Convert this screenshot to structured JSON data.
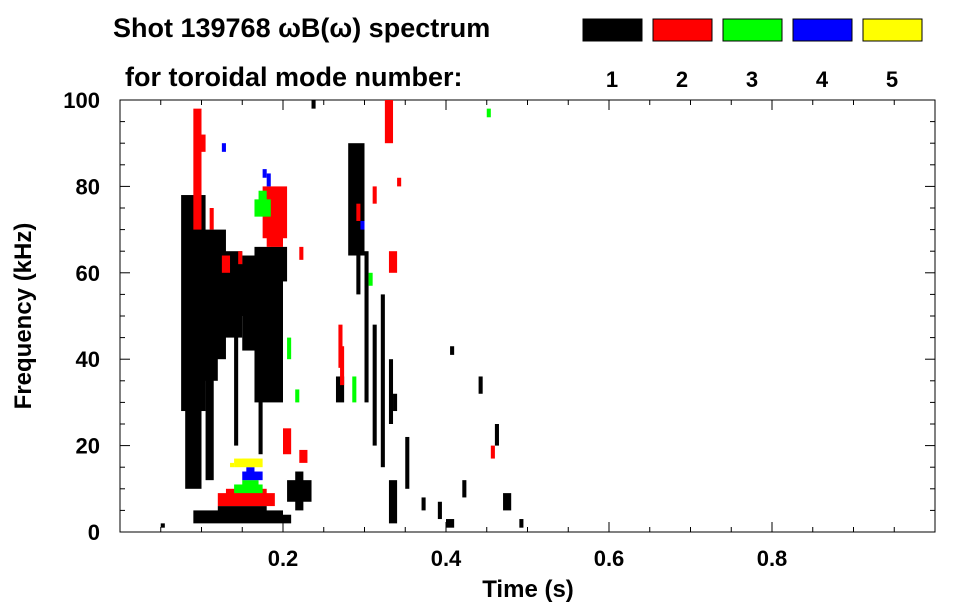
{
  "chart_data": {
    "type": "scatter",
    "title_line1": "Shot 139768 ωB(ω) spectrum",
    "title_line2": "for toroidal mode number:",
    "xlabel": "Time (s)",
    "ylabel": "Frequency (kHz)",
    "xlim": [
      0.0,
      1.0
    ],
    "ylim": [
      0,
      100
    ],
    "xticks": [
      0.2,
      0.4,
      0.6,
      0.8
    ],
    "xtick_labels": [
      "0.2",
      "0.4",
      "0.6",
      "0.8"
    ],
    "yticks": [
      0,
      20,
      40,
      60,
      80,
      100
    ],
    "ytick_labels": [
      "0",
      "20",
      "40",
      "60",
      "80",
      "100"
    ],
    "grid": false,
    "legend_placement": "top-right",
    "legend": [
      {
        "label": "1",
        "color": "#000000"
      },
      {
        "label": "2",
        "color": "#ff0000"
      },
      {
        "label": "3",
        "color": "#00ff00"
      },
      {
        "label": "4",
        "color": "#0000ff"
      },
      {
        "label": "5",
        "color": "#ffff00"
      }
    ],
    "series": [
      {
        "name": "1",
        "color": "#000000",
        "segments": [
          [
            0.075,
            0.105,
            28,
            78
          ],
          [
            0.08,
            0.1,
            10,
            50
          ],
          [
            0.09,
            0.12,
            35,
            62
          ],
          [
            0.1,
            0.13,
            40,
            70
          ],
          [
            0.12,
            0.15,
            45,
            65
          ],
          [
            0.13,
            0.17,
            50,
            62
          ],
          [
            0.15,
            0.18,
            42,
            64
          ],
          [
            0.165,
            0.2,
            30,
            66
          ],
          [
            0.185,
            0.205,
            58,
            66
          ],
          [
            0.105,
            0.115,
            12,
            55
          ],
          [
            0.14,
            0.145,
            20,
            48
          ],
          [
            0.17,
            0.175,
            18,
            50
          ],
          [
            0.09,
            0.2,
            2,
            5
          ],
          [
            0.12,
            0.18,
            3,
            6
          ],
          [
            0.205,
            0.235,
            7,
            12
          ],
          [
            0.215,
            0.225,
            5,
            14
          ],
          [
            0.28,
            0.3,
            64,
            90
          ],
          [
            0.3,
            0.305,
            30,
            65
          ],
          [
            0.29,
            0.295,
            55,
            86
          ],
          [
            0.265,
            0.275,
            30,
            36
          ],
          [
            0.31,
            0.315,
            20,
            48
          ],
          [
            0.32,
            0.325,
            15,
            55
          ],
          [
            0.33,
            0.335,
            25,
            40
          ],
          [
            0.335,
            0.34,
            28,
            32
          ],
          [
            0.33,
            0.34,
            2,
            12
          ],
          [
            0.35,
            0.355,
            10,
            22
          ],
          [
            0.37,
            0.375,
            5,
            8
          ],
          [
            0.39,
            0.395,
            3,
            7
          ],
          [
            0.4,
            0.41,
            1,
            3
          ],
          [
            0.42,
            0.425,
            8,
            12
          ],
          [
            0.44,
            0.445,
            32,
            36
          ],
          [
            0.46,
            0.465,
            20,
            25
          ],
          [
            0.47,
            0.48,
            5,
            9
          ],
          [
            0.49,
            0.495,
            1,
            3
          ],
          [
            0.05,
            0.055,
            1,
            2
          ],
          [
            0.235,
            0.24,
            98,
            100
          ],
          [
            0.405,
            0.41,
            41,
            43
          ],
          [
            0.2,
            0.21,
            2,
            4
          ]
        ]
      },
      {
        "name": "2",
        "color": "#ff0000",
        "segments": [
          [
            0.09,
            0.1,
            70,
            98
          ],
          [
            0.095,
            0.1,
            80,
            85
          ],
          [
            0.175,
            0.205,
            68,
            80
          ],
          [
            0.18,
            0.2,
            66,
            74
          ],
          [
            0.125,
            0.135,
            60,
            64
          ],
          [
            0.145,
            0.15,
            62,
            65
          ],
          [
            0.11,
            0.115,
            70,
            75
          ],
          [
            0.1,
            0.105,
            88,
            92
          ],
          [
            0.2,
            0.21,
            18,
            24
          ],
          [
            0.22,
            0.23,
            16,
            19
          ],
          [
            0.27,
            0.275,
            34,
            43
          ],
          [
            0.268,
            0.273,
            38,
            48
          ],
          [
            0.12,
            0.19,
            6,
            9
          ],
          [
            0.13,
            0.18,
            8,
            10
          ],
          [
            0.325,
            0.335,
            90,
            100
          ],
          [
            0.33,
            0.34,
            60,
            65
          ],
          [
            0.31,
            0.315,
            76,
            80
          ],
          [
            0.34,
            0.345,
            80,
            82
          ],
          [
            0.455,
            0.46,
            17,
            20
          ],
          [
            0.29,
            0.295,
            72,
            76
          ],
          [
            0.22,
            0.225,
            63,
            66
          ]
        ]
      },
      {
        "name": "3",
        "color": "#00ff00",
        "segments": [
          [
            0.165,
            0.185,
            73,
            77
          ],
          [
            0.17,
            0.18,
            75,
            79
          ],
          [
            0.14,
            0.175,
            9,
            11
          ],
          [
            0.15,
            0.17,
            10,
            12
          ],
          [
            0.205,
            0.21,
            40,
            45
          ],
          [
            0.285,
            0.29,
            30,
            36
          ],
          [
            0.305,
            0.31,
            57,
            60
          ],
          [
            0.45,
            0.455,
            96,
            98
          ],
          [
            0.215,
            0.22,
            30,
            33
          ]
        ]
      },
      {
        "name": "4",
        "color": "#0000ff",
        "segments": [
          [
            0.175,
            0.18,
            82,
            84
          ],
          [
            0.18,
            0.185,
            80,
            83
          ],
          [
            0.15,
            0.175,
            12,
            14
          ],
          [
            0.155,
            0.165,
            13,
            15
          ],
          [
            0.295,
            0.3,
            70,
            72
          ],
          [
            0.125,
            0.13,
            88,
            90
          ]
        ]
      },
      {
        "name": "5",
        "color": "#ffff00",
        "segments": [
          [
            0.14,
            0.175,
            15,
            17
          ],
          [
            0.15,
            0.17,
            16,
            17
          ],
          [
            0.135,
            0.14,
            15,
            16
          ]
        ]
      }
    ]
  }
}
